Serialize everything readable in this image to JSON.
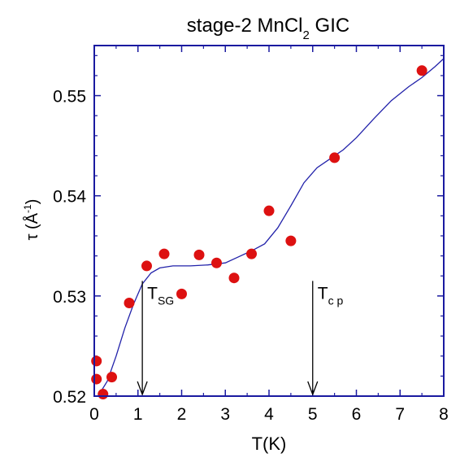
{
  "chart_data": {
    "type": "scatter",
    "title_main": "stage-2 MnCl",
    "title_sub": "2",
    "title_tail": " GIC",
    "xlabel": "T(K)",
    "ylabel_main": "τ (Å",
    "ylabel_sup": "-1",
    "ylabel_tail": ")",
    "xlim": [
      0,
      8
    ],
    "ylim": [
      0.52,
      0.555
    ],
    "x_ticks": [
      0,
      1,
      2,
      3,
      4,
      5,
      6,
      7,
      8
    ],
    "x_tick_labels": [
      "0",
      "1",
      "2",
      "3",
      "4",
      "5",
      "6",
      "7",
      "8"
    ],
    "y_ticks": [
      0.52,
      0.53,
      0.54,
      0.55
    ],
    "y_tick_labels": [
      "0.52",
      "0.53",
      "0.54",
      "0.55"
    ],
    "grid": false,
    "colors": {
      "axes": "#1a1aa0",
      "points": "#dd1111",
      "curve": "#2222aa"
    },
    "points": [
      {
        "x": 0.05,
        "y": 0.5235
      },
      {
        "x": 0.05,
        "y": 0.5217
      },
      {
        "x": 0.2,
        "y": 0.5202
      },
      {
        "x": 0.4,
        "y": 0.5219
      },
      {
        "x": 0.8,
        "y": 0.5293
      },
      {
        "x": 1.2,
        "y": 0.533
      },
      {
        "x": 1.6,
        "y": 0.5342
      },
      {
        "x": 2.0,
        "y": 0.5302
      },
      {
        "x": 2.4,
        "y": 0.5341
      },
      {
        "x": 2.8,
        "y": 0.5333
      },
      {
        "x": 3.2,
        "y": 0.5318
      },
      {
        "x": 3.6,
        "y": 0.5342
      },
      {
        "x": 4.0,
        "y": 0.5385
      },
      {
        "x": 4.5,
        "y": 0.5355
      },
      {
        "x": 5.5,
        "y": 0.5438
      },
      {
        "x": 7.5,
        "y": 0.5525
      }
    ],
    "fit_curve": [
      [
        0.1,
        0.5201
      ],
      [
        0.3,
        0.5215
      ],
      [
        0.5,
        0.524
      ],
      [
        0.7,
        0.5268
      ],
      [
        0.9,
        0.5292
      ],
      [
        1.1,
        0.5312
      ],
      [
        1.3,
        0.5323
      ],
      [
        1.5,
        0.5328
      ],
      [
        1.8,
        0.533
      ],
      [
        2.2,
        0.533
      ],
      [
        2.6,
        0.5331
      ],
      [
        3.0,
        0.5333
      ],
      [
        3.3,
        0.5339
      ],
      [
        3.6,
        0.5345
      ],
      [
        3.9,
        0.5352
      ],
      [
        4.2,
        0.5368
      ],
      [
        4.5,
        0.539
      ],
      [
        4.8,
        0.5413
      ],
      [
        5.1,
        0.5428
      ],
      [
        5.4,
        0.5437
      ],
      [
        5.7,
        0.5446
      ],
      [
        6.0,
        0.5458
      ],
      [
        6.4,
        0.5477
      ],
      [
        6.8,
        0.5495
      ],
      [
        7.2,
        0.5509
      ],
      [
        7.5,
        0.5518
      ],
      [
        7.8,
        0.5529
      ],
      [
        8.0,
        0.5537
      ]
    ],
    "annotations": [
      {
        "label": "T",
        "sub": "SG",
        "x": 1.1,
        "y_top": 0.5315,
        "y_bottom": 0.52
      },
      {
        "label": "T",
        "sub": "c p",
        "x": 5.0,
        "y_top": 0.5315,
        "y_bottom": 0.52
      }
    ]
  }
}
